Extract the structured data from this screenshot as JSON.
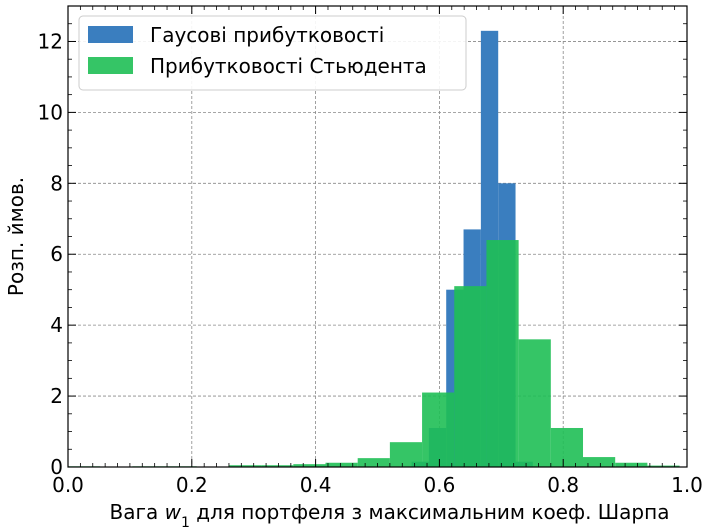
{
  "chart_data": {
    "type": "bar",
    "title": "",
    "xlabel_prefix": "Вага ",
    "xlabel_var": "w",
    "xlabel_sub": "1",
    "xlabel_suffix": " для портфеля з максимальним коеф. Шарпа",
    "ylabel": "Розп. ймов.",
    "xlim": [
      0.0,
      1.0
    ],
    "ylim": [
      0,
      13
    ],
    "xticks": [
      "0.0",
      "0.2",
      "0.4",
      "0.6",
      "0.8",
      "1.0"
    ],
    "yticks": [
      "0",
      "2",
      "4",
      "6",
      "8",
      "10",
      "12"
    ],
    "grid": true,
    "legend_position": "top-left",
    "series": [
      {
        "name": "Гаусові прибутковості",
        "color": "#3a7ebf",
        "opacity": 1.0,
        "bins": [
          {
            "x0": 0.555,
            "x1": 0.583,
            "y": 0.15
          },
          {
            "x0": 0.583,
            "x1": 0.611,
            "y": 1.1
          },
          {
            "x0": 0.611,
            "x1": 0.639,
            "y": 5.0
          },
          {
            "x0": 0.639,
            "x1": 0.667,
            "y": 6.7
          },
          {
            "x0": 0.667,
            "x1": 0.695,
            "y": 12.3
          },
          {
            "x0": 0.695,
            "x1": 0.723,
            "y": 8.0
          },
          {
            "x0": 0.723,
            "x1": 0.751,
            "y": 0.15
          }
        ]
      },
      {
        "name": "Прибутковості Стьюдента",
        "color": "#1fbf55",
        "opacity": 0.9,
        "bins": [
          {
            "x0": 0.0,
            "x1": 0.052,
            "y": 0.02
          },
          {
            "x0": 0.104,
            "x1": 0.156,
            "y": 0.02
          },
          {
            "x0": 0.156,
            "x1": 0.208,
            "y": 0.02
          },
          {
            "x0": 0.26,
            "x1": 0.312,
            "y": 0.05
          },
          {
            "x0": 0.312,
            "x1": 0.364,
            "y": 0.05
          },
          {
            "x0": 0.364,
            "x1": 0.416,
            "y": 0.08
          },
          {
            "x0": 0.416,
            "x1": 0.468,
            "y": 0.12
          },
          {
            "x0": 0.468,
            "x1": 0.52,
            "y": 0.25
          },
          {
            "x0": 0.52,
            "x1": 0.572,
            "y": 0.7
          },
          {
            "x0": 0.572,
            "x1": 0.624,
            "y": 2.1
          },
          {
            "x0": 0.624,
            "x1": 0.676,
            "y": 5.1
          },
          {
            "x0": 0.676,
            "x1": 0.728,
            "y": 6.4
          },
          {
            "x0": 0.728,
            "x1": 0.78,
            "y": 3.6
          },
          {
            "x0": 0.78,
            "x1": 0.832,
            "y": 1.1
          },
          {
            "x0": 0.832,
            "x1": 0.884,
            "y": 0.28
          },
          {
            "x0": 0.884,
            "x1": 0.936,
            "y": 0.12
          },
          {
            "x0": 0.936,
            "x1": 0.988,
            "y": 0.04
          }
        ]
      }
    ]
  }
}
